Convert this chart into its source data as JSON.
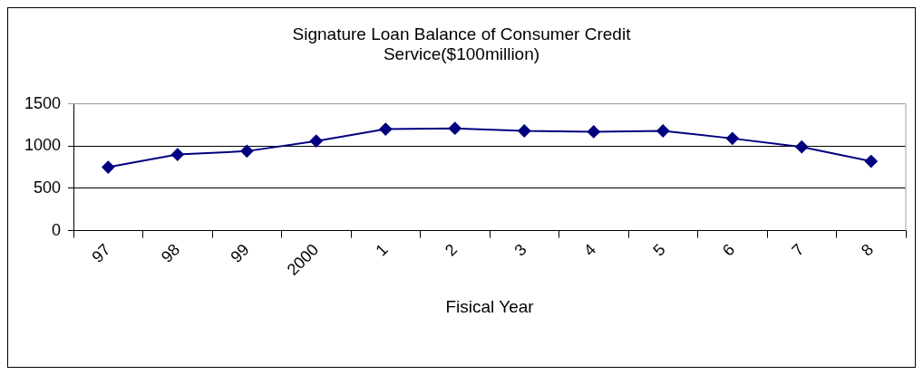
{
  "chart_data": {
    "type": "line",
    "title": "Signature Loan Balance of Consumer Credit\nService($100million)",
    "xlabel": "Fisical Year",
    "categories": [
      "97",
      "98",
      "99",
      "2000",
      "1",
      "2",
      "3",
      "4",
      "5",
      "6",
      "7",
      "8"
    ],
    "series": [
      {
        "color": "#000080",
        "values": [
          750,
          900,
          940,
          1060,
          1200,
          1210,
          1180,
          1170,
          1180,
          1090,
          990,
          820
        ]
      }
    ],
    "ylim": [
      0,
      1500
    ],
    "yticks": [
      0,
      500,
      1000,
      1500
    ],
    "grid": "y",
    "legend": false,
    "marker": "diamond",
    "line_style": "solid"
  }
}
